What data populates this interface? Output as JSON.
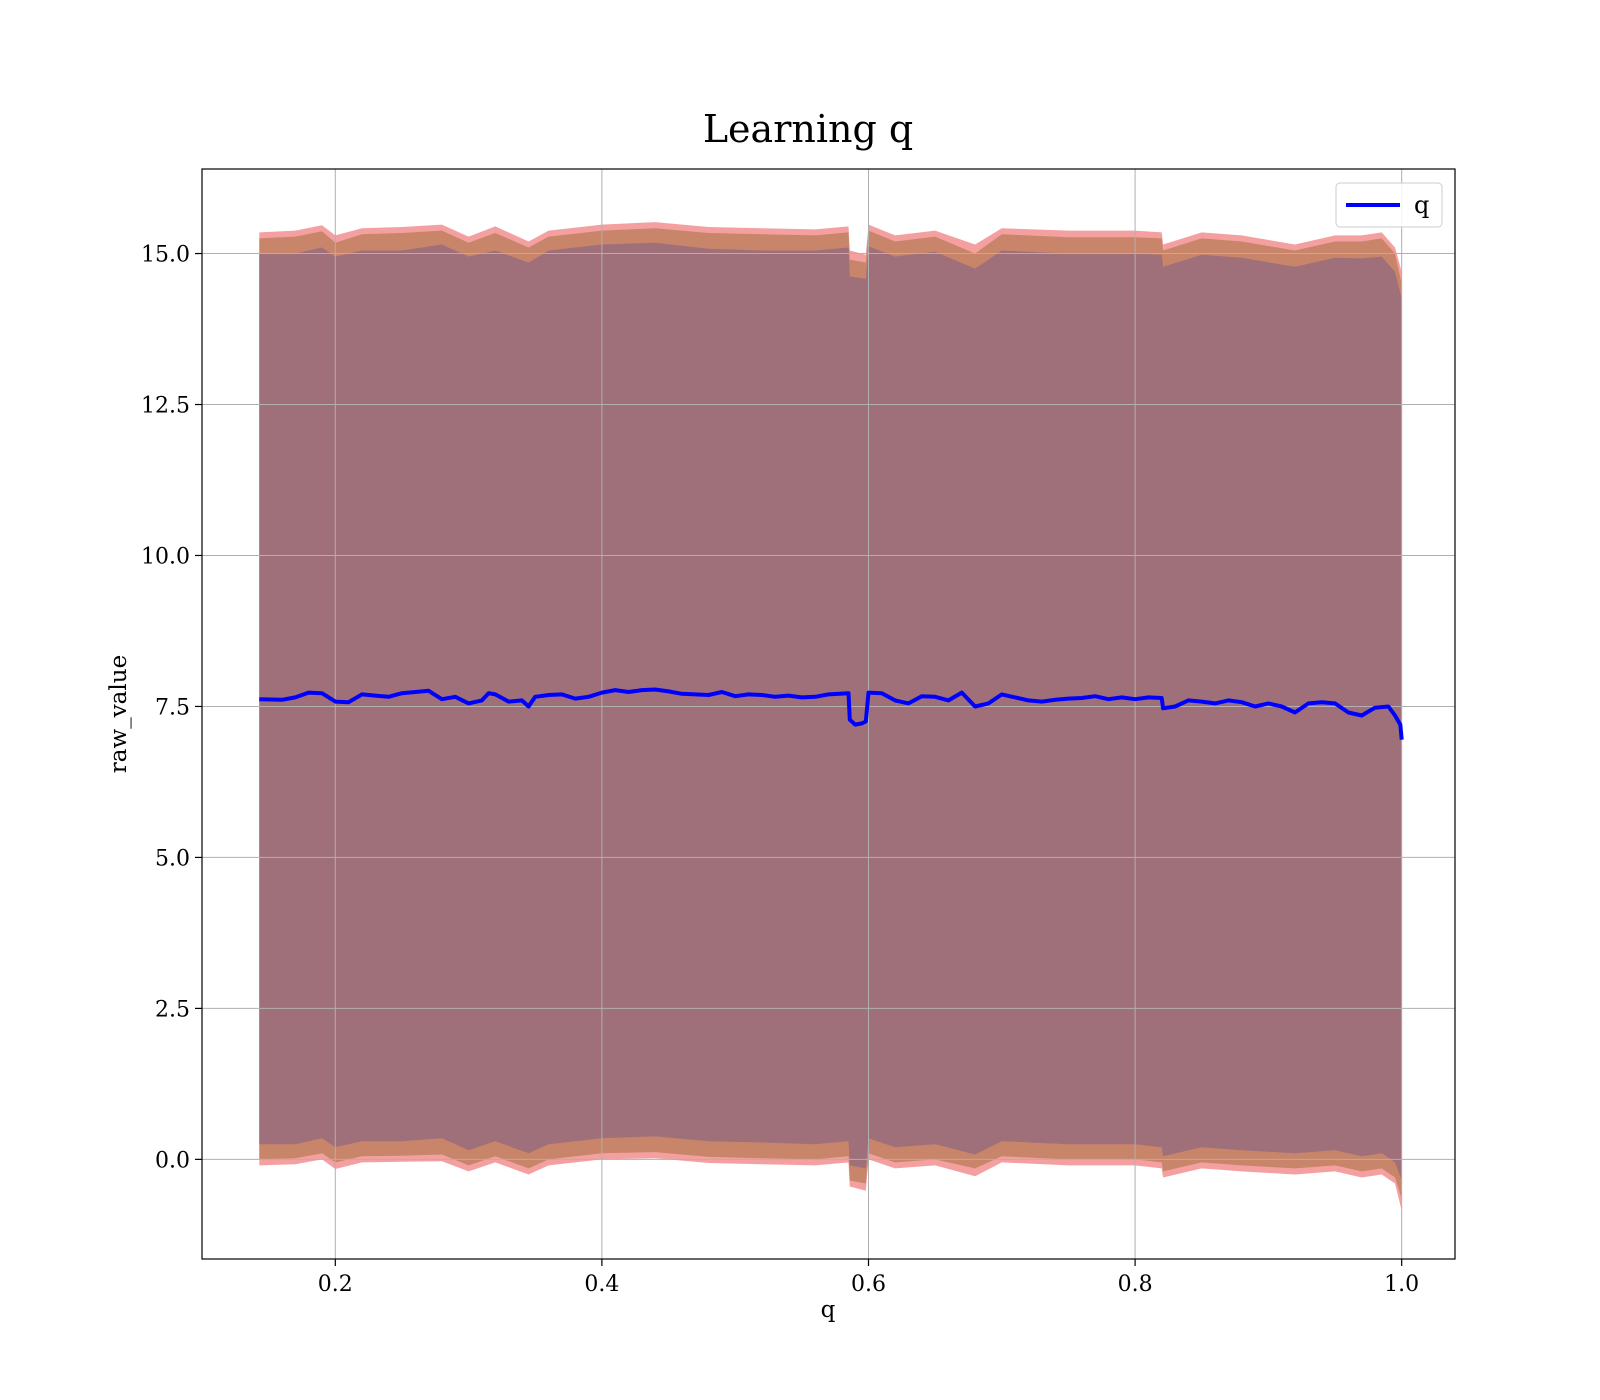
{
  "chart_data": {
    "type": "line",
    "title": "Learning q",
    "xlabel": "q",
    "ylabel": "raw_value",
    "xlim": [
      0.1,
      1.04
    ],
    "ylim": [
      -1.65,
      16.4
    ],
    "xticks": [
      0.2,
      0.4,
      0.6,
      0.8,
      1.0
    ],
    "xtick_labels": [
      "0.2",
      "0.4",
      "0.6",
      "0.8",
      "1.0"
    ],
    "yticks": [
      0.0,
      2.5,
      5.0,
      7.5,
      10.0,
      12.5,
      15.0
    ],
    "ytick_labels": [
      "0.0",
      "2.5",
      "5.0",
      "7.5",
      "10.0",
      "12.5",
      "15.0"
    ],
    "grid": true,
    "legend": {
      "position": "top-right",
      "entries": [
        "q"
      ]
    },
    "colors": {
      "line": "#0000ff",
      "outer_band": "#f08080",
      "middle_band": "#c08060",
      "inner_band": "#a0707a",
      "grid": "#b0b0b0"
    },
    "series": [
      {
        "name": "q",
        "x": [
          0.143,
          0.16,
          0.17,
          0.18,
          0.19,
          0.2,
          0.21,
          0.22,
          0.23,
          0.24,
          0.25,
          0.26,
          0.27,
          0.28,
          0.29,
          0.3,
          0.31,
          0.315,
          0.32,
          0.33,
          0.34,
          0.345,
          0.35,
          0.36,
          0.37,
          0.38,
          0.39,
          0.4,
          0.41,
          0.42,
          0.43,
          0.44,
          0.45,
          0.46,
          0.47,
          0.48,
          0.49,
          0.5,
          0.51,
          0.52,
          0.53,
          0.54,
          0.55,
          0.56,
          0.57,
          0.585,
          0.586,
          0.59,
          0.595,
          0.598,
          0.6,
          0.61,
          0.62,
          0.63,
          0.64,
          0.65,
          0.66,
          0.67,
          0.68,
          0.69,
          0.7,
          0.71,
          0.72,
          0.73,
          0.74,
          0.75,
          0.76,
          0.77,
          0.78,
          0.79,
          0.8,
          0.81,
          0.82,
          0.821,
          0.83,
          0.84,
          0.85,
          0.86,
          0.87,
          0.88,
          0.89,
          0.9,
          0.91,
          0.92,
          0.93,
          0.94,
          0.95,
          0.96,
          0.97,
          0.98,
          0.99,
          0.995,
          0.999,
          1.0
        ],
        "y": [
          7.62,
          7.61,
          7.65,
          7.73,
          7.72,
          7.58,
          7.57,
          7.7,
          7.68,
          7.66,
          7.72,
          7.74,
          7.76,
          7.62,
          7.66,
          7.55,
          7.6,
          7.72,
          7.7,
          7.58,
          7.6,
          7.5,
          7.66,
          7.69,
          7.7,
          7.63,
          7.66,
          7.73,
          7.77,
          7.74,
          7.77,
          7.78,
          7.75,
          7.71,
          7.7,
          7.69,
          7.74,
          7.67,
          7.7,
          7.69,
          7.66,
          7.68,
          7.65,
          7.66,
          7.7,
          7.72,
          7.28,
          7.2,
          7.22,
          7.25,
          7.73,
          7.72,
          7.6,
          7.55,
          7.67,
          7.66,
          7.6,
          7.73,
          7.5,
          7.55,
          7.7,
          7.65,
          7.6,
          7.58,
          7.61,
          7.63,
          7.64,
          7.67,
          7.62,
          7.65,
          7.62,
          7.65,
          7.64,
          7.47,
          7.5,
          7.6,
          7.58,
          7.55,
          7.6,
          7.57,
          7.5,
          7.55,
          7.5,
          7.4,
          7.55,
          7.57,
          7.55,
          7.4,
          7.35,
          7.48,
          7.5,
          7.35,
          7.2,
          6.95
        ]
      }
    ],
    "bands": [
      {
        "name": "outer",
        "x": [
          0.143,
          0.17,
          0.19,
          0.2,
          0.22,
          0.25,
          0.28,
          0.3,
          0.32,
          0.345,
          0.36,
          0.4,
          0.44,
          0.48,
          0.52,
          0.56,
          0.585,
          0.586,
          0.598,
          0.6,
          0.62,
          0.65,
          0.68,
          0.7,
          0.75,
          0.8,
          0.82,
          0.821,
          0.85,
          0.88,
          0.92,
          0.95,
          0.97,
          0.985,
          0.995,
          1.0
        ],
        "upper": [
          15.35,
          15.38,
          15.47,
          15.3,
          15.42,
          15.44,
          15.48,
          15.28,
          15.45,
          15.2,
          15.38,
          15.48,
          15.52,
          15.44,
          15.42,
          15.4,
          15.45,
          15.05,
          14.98,
          15.48,
          15.3,
          15.38,
          15.15,
          15.42,
          15.38,
          15.38,
          15.35,
          15.15,
          15.35,
          15.3,
          15.15,
          15.3,
          15.3,
          15.35,
          15.1,
          14.7
        ],
        "lower": [
          -0.1,
          -0.08,
          0.0,
          -0.16,
          -0.05,
          -0.04,
          -0.03,
          -0.2,
          -0.05,
          -0.25,
          -0.1,
          0.0,
          0.02,
          -0.06,
          -0.08,
          -0.1,
          -0.05,
          -0.45,
          -0.52,
          0.0,
          -0.15,
          -0.1,
          -0.28,
          -0.05,
          -0.1,
          -0.1,
          -0.15,
          -0.3,
          -0.15,
          -0.2,
          -0.25,
          -0.2,
          -0.3,
          -0.25,
          -0.4,
          -0.85
        ]
      },
      {
        "name": "middle",
        "x": [
          0.143,
          0.17,
          0.19,
          0.2,
          0.22,
          0.25,
          0.28,
          0.3,
          0.32,
          0.345,
          0.36,
          0.4,
          0.44,
          0.48,
          0.52,
          0.56,
          0.585,
          0.586,
          0.598,
          0.6,
          0.62,
          0.65,
          0.68,
          0.7,
          0.75,
          0.8,
          0.82,
          0.821,
          0.85,
          0.88,
          0.92,
          0.95,
          0.97,
          0.985,
          0.995,
          1.0
        ],
        "upper": [
          15.25,
          15.28,
          15.37,
          15.18,
          15.32,
          15.34,
          15.38,
          15.18,
          15.34,
          15.1,
          15.28,
          15.38,
          15.42,
          15.34,
          15.32,
          15.3,
          15.35,
          14.9,
          14.85,
          15.38,
          15.2,
          15.28,
          15.0,
          15.32,
          15.27,
          15.27,
          15.25,
          15.05,
          15.25,
          15.2,
          15.05,
          15.2,
          15.2,
          15.25,
          15.0,
          14.5
        ],
        "lower": [
          0.0,
          0.02,
          0.1,
          -0.05,
          0.05,
          0.06,
          0.08,
          -0.1,
          0.05,
          -0.15,
          0.0,
          0.1,
          0.12,
          0.04,
          0.02,
          0.0,
          0.05,
          -0.35,
          -0.4,
          0.1,
          -0.05,
          0.0,
          -0.15,
          0.05,
          0.0,
          0.0,
          -0.05,
          -0.2,
          -0.05,
          -0.1,
          -0.15,
          -0.1,
          -0.2,
          -0.15,
          -0.3,
          -0.65
        ]
      },
      {
        "name": "inner",
        "x": [
          0.143,
          0.17,
          0.19,
          0.2,
          0.22,
          0.25,
          0.28,
          0.3,
          0.32,
          0.345,
          0.36,
          0.4,
          0.44,
          0.48,
          0.52,
          0.56,
          0.585,
          0.586,
          0.598,
          0.6,
          0.62,
          0.65,
          0.68,
          0.7,
          0.75,
          0.8,
          0.82,
          0.821,
          0.85,
          0.88,
          0.92,
          0.95,
          0.97,
          0.985,
          0.995,
          1.0
        ],
        "upper": [
          15.0,
          15.0,
          15.1,
          14.95,
          15.05,
          15.05,
          15.15,
          14.95,
          15.05,
          14.85,
          15.05,
          15.15,
          15.18,
          15.08,
          15.05,
          15.05,
          15.1,
          14.62,
          14.58,
          15.12,
          14.95,
          15.03,
          14.75,
          15.05,
          15.0,
          15.0,
          14.98,
          14.78,
          14.98,
          14.93,
          14.78,
          14.93,
          14.92,
          14.95,
          14.7,
          14.25
        ],
        "lower": [
          0.25,
          0.25,
          0.35,
          0.2,
          0.3,
          0.3,
          0.35,
          0.15,
          0.3,
          0.1,
          0.25,
          0.35,
          0.38,
          0.3,
          0.28,
          0.25,
          0.3,
          -0.1,
          -0.15,
          0.35,
          0.2,
          0.25,
          0.08,
          0.3,
          0.25,
          0.25,
          0.2,
          0.05,
          0.2,
          0.15,
          0.1,
          0.15,
          0.05,
          0.1,
          -0.05,
          -0.35
        ]
      }
    ]
  }
}
